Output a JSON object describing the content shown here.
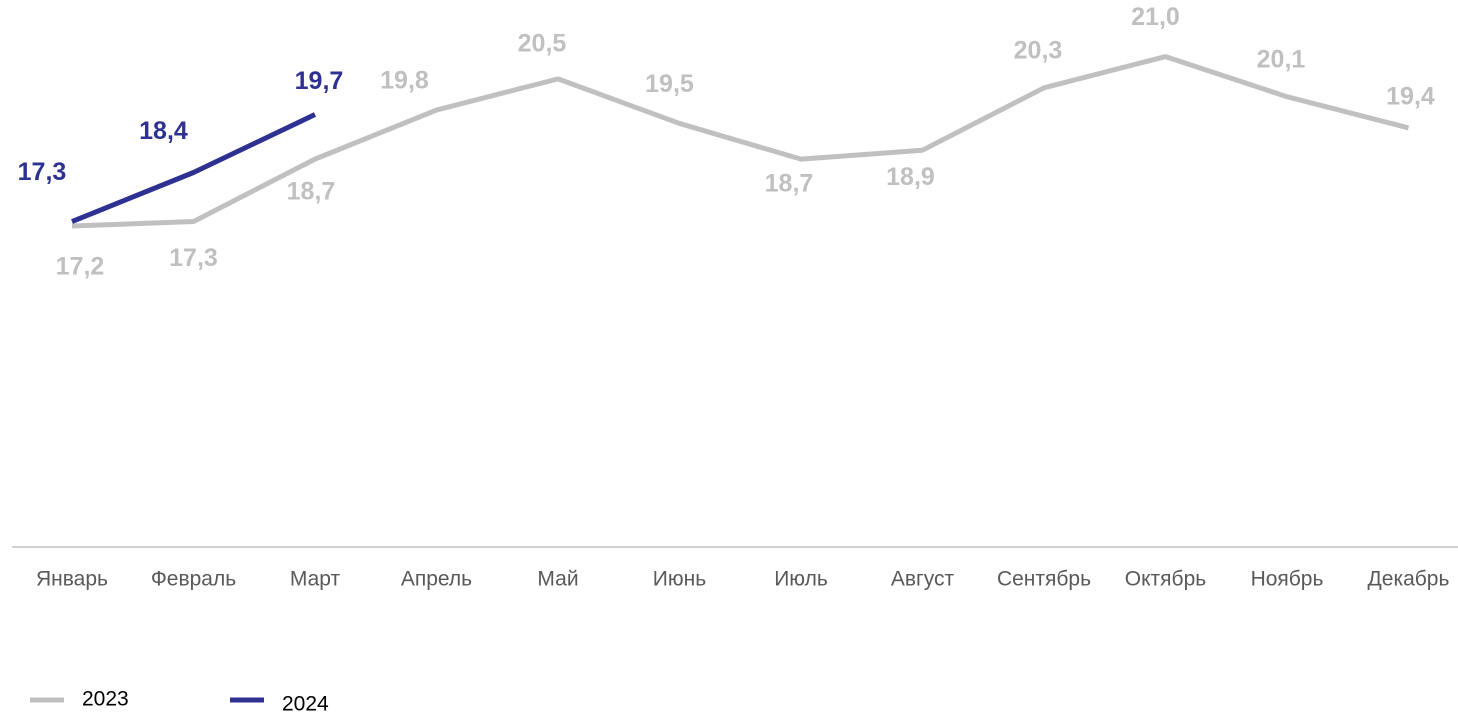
{
  "chart_data": {
    "type": "line",
    "categories": [
      "Январь",
      "Февраль",
      "Март",
      "Апрель",
      "Май",
      "Июнь",
      "Июль",
      "Август",
      "Сентябрь",
      "Октябрь",
      "Ноябрь",
      "Декабрь"
    ],
    "series": [
      {
        "name": "2023",
        "color": "#c0c0c0",
        "values": [
          17.2,
          17.3,
          18.7,
          19.8,
          20.5,
          19.5,
          18.7,
          18.9,
          20.3,
          21.0,
          20.1,
          19.4
        ],
        "value_labels": [
          "17,2",
          "17,3",
          "18,7",
          "19,8",
          "20,5",
          "19,5",
          "18,7",
          "18,9",
          "20,3",
          "21,0",
          "20,1",
          "19,4"
        ]
      },
      {
        "name": "2024",
        "color": "#2e3192",
        "values": [
          17.3,
          18.4,
          19.7,
          null,
          null,
          null,
          null,
          null,
          null,
          null,
          null,
          null
        ],
        "value_labels": [
          "17,3",
          "18,4",
          "19,7",
          null,
          null,
          null,
          null,
          null,
          null,
          null,
          null,
          null
        ]
      }
    ],
    "ylim": [
      10,
      22
    ],
    "grid": false,
    "legend": "bottom-left"
  }
}
